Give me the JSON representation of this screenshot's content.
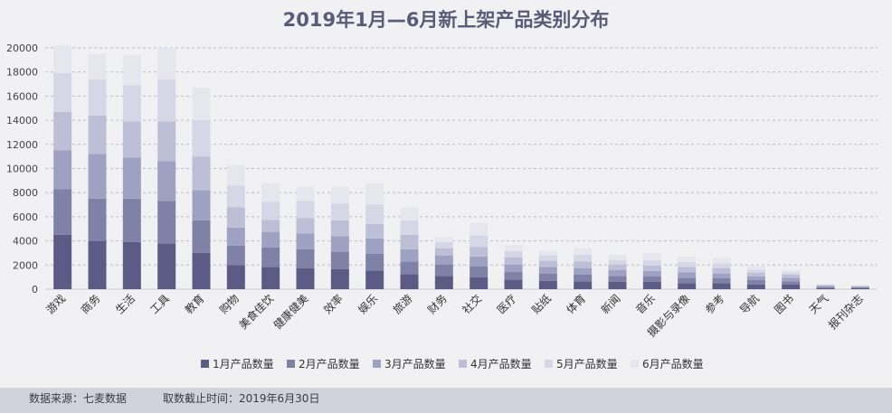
{
  "chart_data": {
    "type": "bar",
    "stacked": true,
    "title": "2019年1月—6月新上架产品类别分布",
    "categories": [
      "游戏",
      "商务",
      "生活",
      "工具",
      "教育",
      "购物",
      "美食佳饮",
      "健康健美",
      "效率",
      "娱乐",
      "旅游",
      "财务",
      "社交",
      "医疗",
      "贴纸",
      "体育",
      "新闻",
      "音乐",
      "摄影与录像",
      "参考",
      "导航",
      "图书",
      "天气",
      "报刊杂志"
    ],
    "series": [
      {
        "name": "1月产品数量",
        "values": [
          4500,
          4000,
          3900,
          3800,
          3000,
          2000,
          1850,
          1750,
          1650,
          1550,
          1250,
          1100,
          1000,
          800,
          700,
          650,
          600,
          600,
          500,
          500,
          400,
          400,
          100,
          100
        ]
      },
      {
        "name": "2月产品数量",
        "values": [
          3800,
          3500,
          3600,
          3500,
          2700,
          1600,
          1600,
          1550,
          1450,
          1400,
          1050,
          950,
          900,
          650,
          600,
          550,
          500,
          450,
          450,
          400,
          350,
          250,
          80,
          60
        ]
      },
      {
        "name": "3月产品数量",
        "values": [
          3200,
          3700,
          3400,
          3300,
          2500,
          1500,
          1300,
          1300,
          1300,
          1250,
          1000,
          750,
          800,
          600,
          550,
          550,
          500,
          450,
          450,
          400,
          300,
          300,
          80,
          50
        ]
      },
      {
        "name": "4月产品数量",
        "values": [
          3200,
          3200,
          3000,
          3300,
          2800,
          1700,
          1000,
          1300,
          1300,
          1200,
          1200,
          600,
          800,
          600,
          500,
          550,
          450,
          450,
          450,
          450,
          300,
          250,
          70,
          50
        ]
      },
      {
        "name": "5月产品数量",
        "values": [
          3200,
          3000,
          3000,
          3500,
          3000,
          1800,
          1500,
          1400,
          1400,
          1600,
          1200,
          500,
          950,
          500,
          450,
          550,
          350,
          450,
          400,
          400,
          250,
          200,
          50,
          30
        ]
      },
      {
        "name": "6月产品数量",
        "values": [
          2300,
          2100,
          2500,
          2600,
          2700,
          1700,
          1550,
          1200,
          1400,
          1800,
          1100,
          400,
          1050,
          500,
          400,
          550,
          450,
          600,
          450,
          450,
          300,
          200,
          40,
          40
        ]
      }
    ],
    "colors": [
      "#5b5b86",
      "#8081a7",
      "#9fa1c2",
      "#bdbfd6",
      "#d5d6e6",
      "#e6e6ef"
    ],
    "ylim": [
      0,
      20000
    ],
    "yticks": [
      0,
      2000,
      4000,
      6000,
      8000,
      10000,
      12000,
      14000,
      16000,
      18000,
      20000
    ],
    "grid": true,
    "legend_position": "bottom"
  },
  "footer": {
    "source": "数据来源：七麦数据",
    "cutoff": "取数截止时间：2019年6月30日"
  }
}
